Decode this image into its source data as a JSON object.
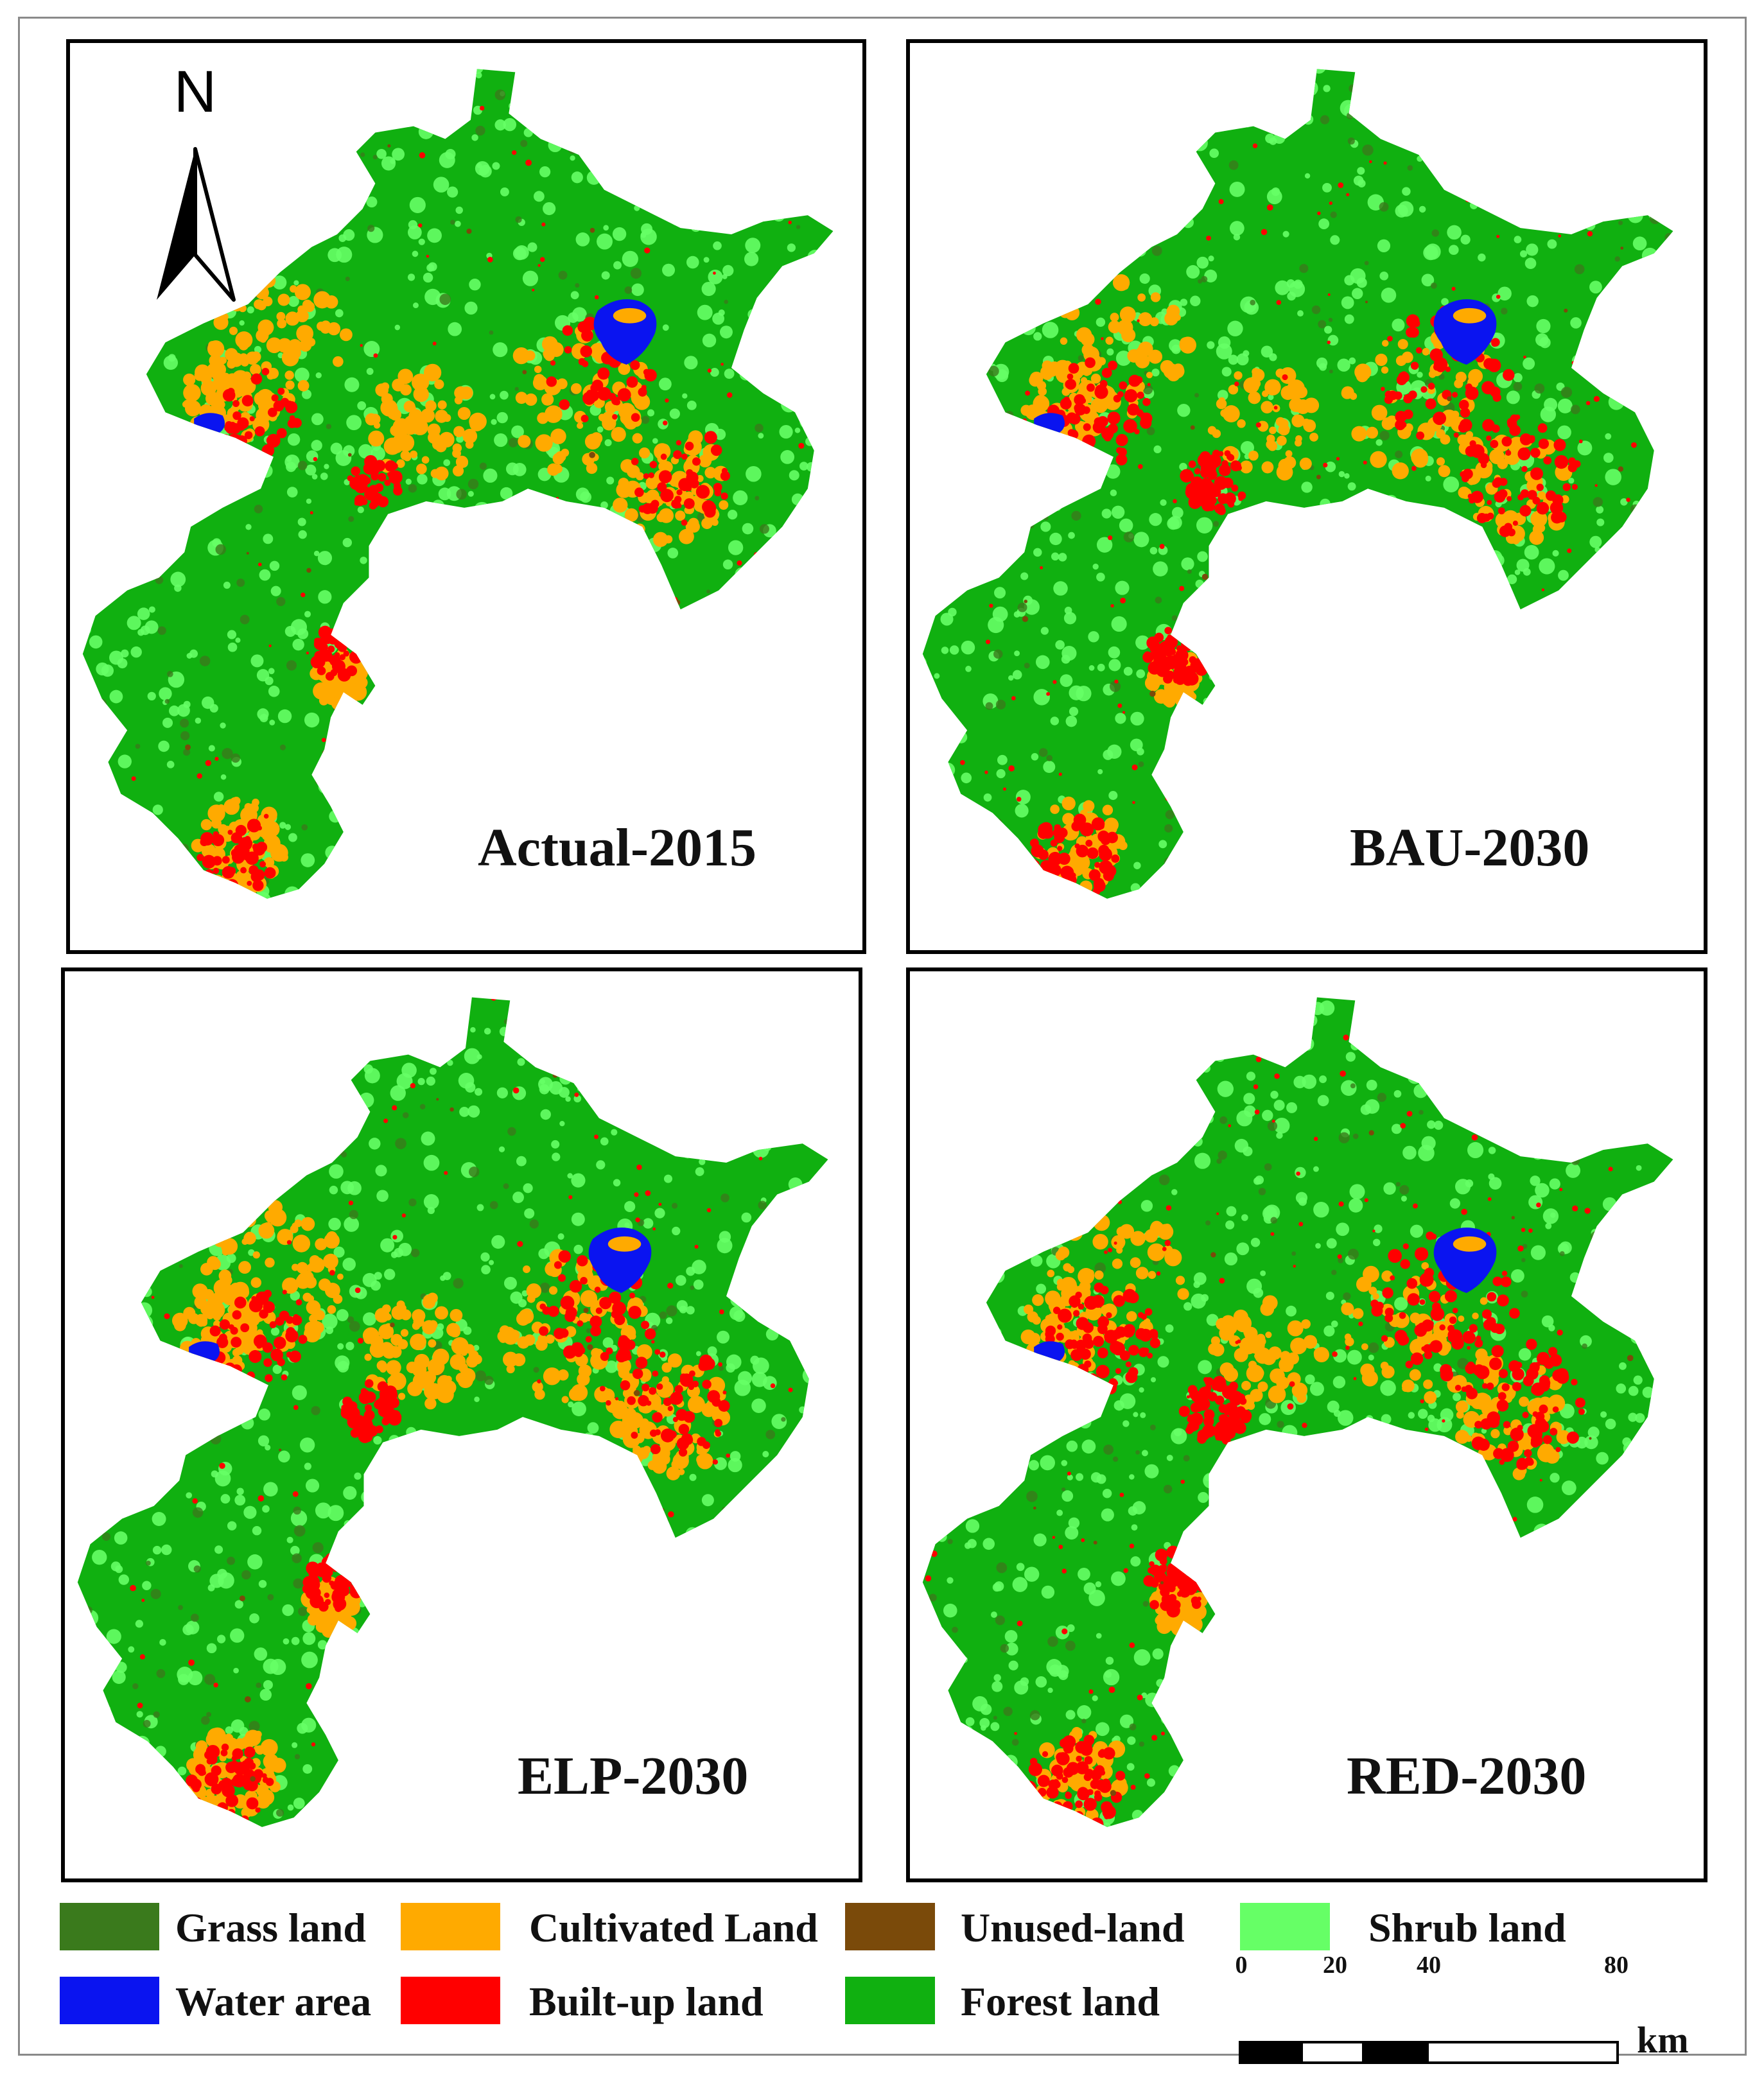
{
  "panels": [
    {
      "label": "Actual-2015",
      "variant": 0
    },
    {
      "label": "BAU-2030",
      "variant": 1
    },
    {
      "label": "ELP-2030",
      "variant": 2
    },
    {
      "label": "RED-2030",
      "variant": 3
    }
  ],
  "north_arrow": {
    "letter": "N"
  },
  "legend": [
    {
      "label": "Grass land",
      "color": "#3a7a1c"
    },
    {
      "label": "Cultivated Land",
      "color": "#ffaa00"
    },
    {
      "label": "Unused-land",
      "color": "#7a4a0a"
    },
    {
      "label": "Shrub land",
      "color": "#66ff66"
    },
    {
      "label": "Water area",
      "color": "#0a14f0"
    },
    {
      "label": "Built-up land",
      "color": "#ff0000"
    },
    {
      "label": "Forest land",
      "color": "#10b010"
    }
  ],
  "scale_bar": {
    "ticks": [
      "0",
      "20",
      "40",
      "80"
    ],
    "unit": "km"
  }
}
